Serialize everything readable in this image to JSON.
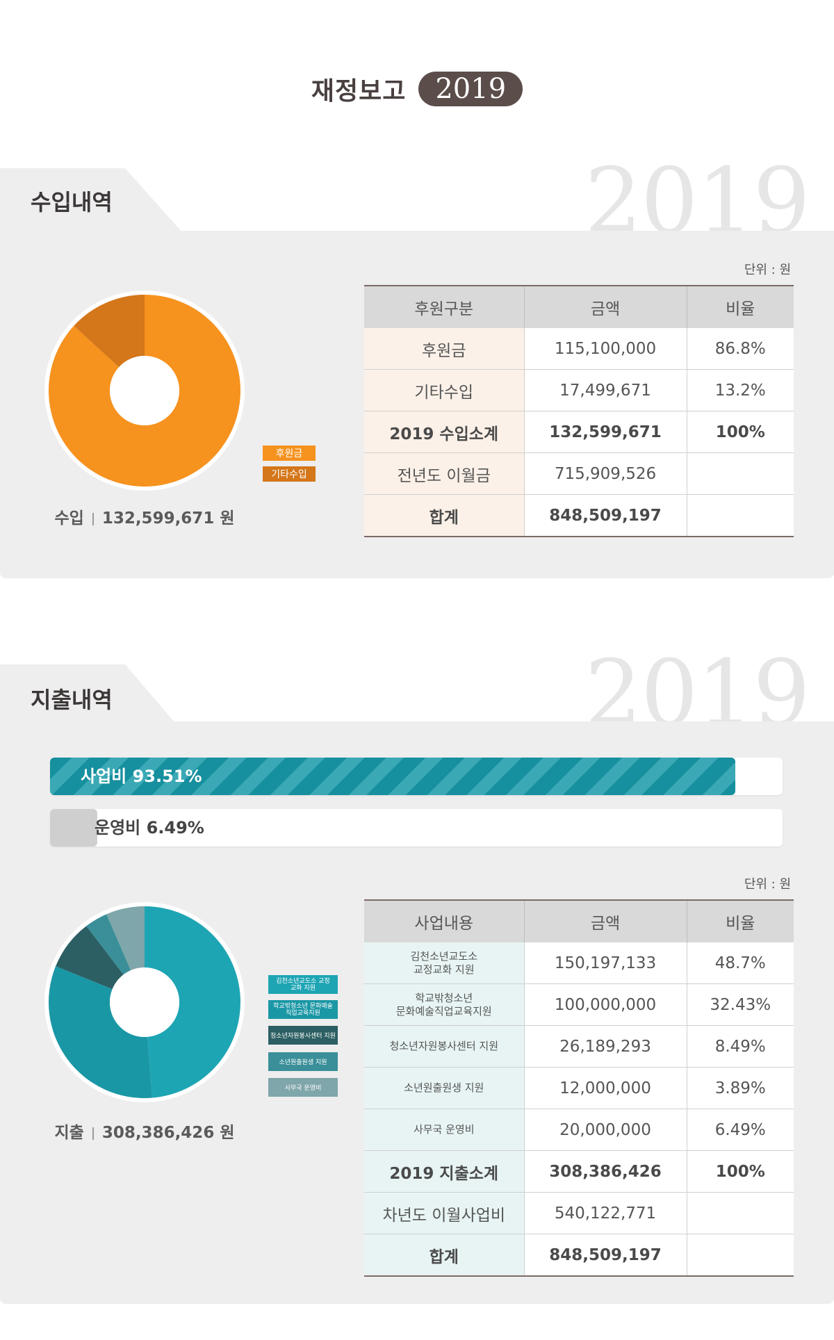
{
  "header": {
    "title": "재정보고",
    "year": "2019"
  },
  "income": {
    "section_title": "수입내역",
    "watermark": "2019",
    "unit": "단위 : 원",
    "caption_label": "수입",
    "caption_value": "132,599,671 원",
    "colors": {
      "main": "#f6921e",
      "other": "#d4761a"
    },
    "legend": [
      "후원금",
      "기타수입"
    ],
    "table": {
      "headers": [
        "후원구분",
        "금액",
        "비율"
      ],
      "rows": [
        {
          "cat": "후원금",
          "amount": "115,100,000",
          "ratio": "86.8%"
        },
        {
          "cat": "기타수입",
          "amount": "17,499,671",
          "ratio": "13.2%"
        },
        {
          "cat": "2019 수입소계",
          "amount": "132,599,671",
          "ratio": "100%"
        },
        {
          "cat": "전년도 이월금",
          "amount": "715,909,526",
          "ratio": ""
        },
        {
          "cat": "합계",
          "amount": "848,509,197",
          "ratio": ""
        }
      ]
    }
  },
  "expense": {
    "section_title": "지출내역",
    "watermark": "2019",
    "unit": "단위 : 원",
    "caption_label": "지출",
    "caption_value": "308,386,426 원",
    "bars": [
      {
        "label": "사업비 93.51%",
        "value": 93.51,
        "color": "#168f9e"
      },
      {
        "label": "운영비 6.49%",
        "value": 6.49,
        "color": "#cfcfcf"
      }
    ],
    "legend": [
      "김천소년교도소 교정교화 지원",
      "학교밖청소년 문화예술직업교육지원",
      "청소년자원봉사센터 지원",
      "소년원출원생 지원",
      "사무국 운영비"
    ],
    "legend_colors": [
      "#1ea5b4",
      "#1a97a5",
      "#2b5f63",
      "#3a8f99",
      "#7fa6aa"
    ],
    "table": {
      "headers": [
        "사업내용",
        "금액",
        "비율"
      ],
      "rows": [
        {
          "cat": "김천소년교도소\n교정교화 지원",
          "amount": "150,197,133",
          "ratio": "48.7%"
        },
        {
          "cat": "학교밖청소년\n문화예술직업교육지원",
          "amount": "100,000,000",
          "ratio": "32.43%"
        },
        {
          "cat": "청소년자원봉사센터 지원",
          "amount": "26,189,293",
          "ratio": "8.49%"
        },
        {
          "cat": "소년원출원생 지원",
          "amount": "12,000,000",
          "ratio": "3.89%"
        },
        {
          "cat": "사무국 운영비",
          "amount": "20,000,000",
          "ratio": "6.49%"
        },
        {
          "cat": "2019 지출소계",
          "amount": "308,386,426",
          "ratio": "100%"
        },
        {
          "cat": "차년도 이월사업비",
          "amount": "540,122,771",
          "ratio": ""
        },
        {
          "cat": "합계",
          "amount": "848,509,197",
          "ratio": ""
        }
      ]
    }
  },
  "chart_data": [
    {
      "type": "pie",
      "categories": [
        "후원금",
        "기타수입"
      ],
      "values": [
        86.8,
        13.2
      ],
      "colors": [
        "#f6921e",
        "#d4761a"
      ]
    },
    {
      "type": "pie",
      "categories": [
        "김천소년교도소 교정교화 지원",
        "학교밖청소년 문화예술직업교육지원",
        "청소년자원봉사센터 지원",
        "소년원출원생 지원",
        "사무국 운영비"
      ],
      "values": [
        48.7,
        32.43,
        8.49,
        3.89,
        6.49
      ],
      "colors": [
        "#1ea5b4",
        "#1a97a5",
        "#2b5f63",
        "#3a8f99",
        "#7fa6aa"
      ]
    },
    {
      "type": "bar",
      "categories": [
        "사업비",
        "운영비"
      ],
      "values": [
        93.51,
        6.49
      ],
      "ylim": [
        0,
        100
      ]
    }
  ]
}
